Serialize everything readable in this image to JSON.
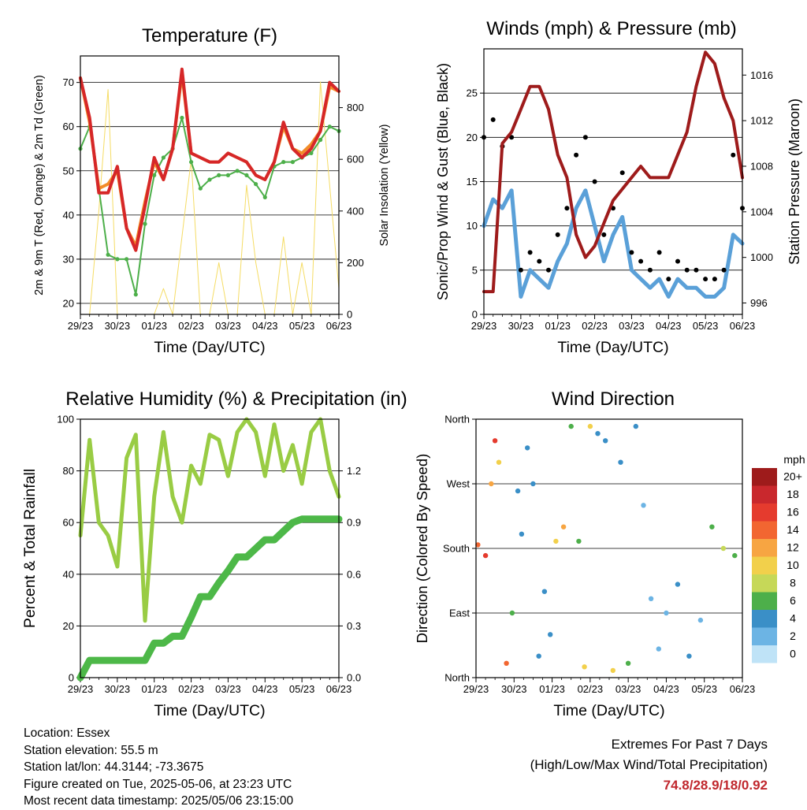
{
  "x_ticks": [
    "29/23",
    "30/23",
    "01/23",
    "02/23",
    "03/23",
    "04/23",
    "05/23",
    "06/23"
  ],
  "x_label": "Time (Day/UTC)",
  "info": {
    "location": "Location: Essex",
    "elevation": "Station elevation: 55.5 m",
    "latlon": "Station lat/lon: 44.3144; -73.3675",
    "created": "Figure created on Tue, 2025-05-06, at 23:23 UTC",
    "recent": "Most recent data timestamp: 2025/05/06 23:15:00"
  },
  "extremes": {
    "title": "Extremes For Past 7 Days",
    "subtitle": "(High/Low/Max Wind/Total Precipitation)",
    "values": "74.8/28.9/18/0.92"
  },
  "colors": {
    "temp_2m": "#d62728",
    "temp_9m": "#f28c28",
    "dewpoint": "#4daf4a",
    "solar": "#f5dc64",
    "wind": "#5aa0d8",
    "gust": "#000000",
    "pressure": "#9e1b1b",
    "rh": "#99cc44",
    "precip": "#4db848"
  },
  "chart_data": [
    {
      "type": "line",
      "title": "Temperature (F)",
      "xlabel": "Time (Day/UTC)",
      "ylabel": "2m & 9m T (Red, Orange) & 2m Td (Green)",
      "ylabel_right": "Solar Insolation (Yellow)",
      "ylim": [
        17.5,
        76
      ],
      "y_ticks": [
        20,
        30,
        40,
        50,
        60,
        70
      ],
      "ylim_right": [
        0,
        1000
      ],
      "y_ticks_right": [
        0,
        200,
        400,
        600,
        800
      ],
      "x_days": [
        0,
        0.25,
        0.5,
        0.75,
        1,
        1.25,
        1.5,
        1.75,
        2,
        2.25,
        2.5,
        2.75,
        3,
        3.25,
        3.5,
        3.75,
        4,
        4.25,
        4.5,
        4.75,
        5,
        5.25,
        5.5,
        5.75,
        6,
        6.25,
        6.5,
        6.75,
        7
      ],
      "series": [
        {
          "name": "2m T",
          "values": [
            71,
            62,
            45,
            45,
            51,
            37,
            32,
            42,
            53,
            48,
            55,
            73,
            54,
            53,
            52,
            52,
            54,
            53,
            52,
            49,
            48,
            52,
            61,
            55,
            53,
            55,
            59,
            70,
            68
          ]
        },
        {
          "name": "9m T",
          "values": [
            71,
            61,
            46,
            47,
            50,
            37,
            33,
            43,
            52,
            48,
            55,
            72,
            54,
            53,
            52,
            52,
            54,
            53,
            52,
            49,
            48,
            52,
            60,
            55,
            54,
            56,
            59,
            69,
            68
          ]
        },
        {
          "name": "2m Td",
          "values": [
            55,
            60,
            46,
            31,
            30,
            30,
            22,
            38,
            49,
            53,
            55,
            62,
            52,
            46,
            48,
            49,
            49,
            50,
            49,
            47,
            44,
            51,
            52,
            52,
            53,
            54,
            57,
            60,
            59
          ]
        },
        {
          "name": "Solar",
          "values": [
            0,
            0,
            400,
            870,
            0,
            0,
            0,
            0,
            0,
            100,
            0,
            300,
            600,
            0,
            0,
            200,
            0,
            0,
            500,
            200,
            0,
            0,
            300,
            0,
            200,
            0,
            900,
            500,
            100
          ]
        }
      ]
    },
    {
      "type": "scatter",
      "title": "Winds (mph) & Pressure (mb)",
      "xlabel": "Time (Day/UTC)",
      "ylabel": "Sonic/Prop Wind & Gust (Blue, Black)",
      "ylabel_right": "Station Pressure (Maroon)",
      "ylim": [
        0,
        30
      ],
      "y_ticks": [
        0,
        5,
        10,
        15,
        20,
        25
      ],
      "ylim_right": [
        995,
        1018.3
      ],
      "y_ticks_right": [
        996,
        1000,
        1004,
        1008,
        1012,
        1016
      ],
      "x_days": [
        0,
        0.25,
        0.5,
        0.75,
        1,
        1.25,
        1.5,
        1.75,
        2,
        2.25,
        2.5,
        2.75,
        3,
        3.25,
        3.5,
        3.75,
        4,
        4.25,
        4.5,
        4.75,
        5,
        5.25,
        5.5,
        5.75,
        6,
        6.25,
        6.5,
        6.75,
        7
      ],
      "series": [
        {
          "name": "Wind",
          "values": [
            10,
            13,
            12,
            14,
            2,
            5,
            4,
            3,
            6,
            8,
            12,
            14,
            10,
            6,
            9,
            11,
            5,
            4,
            3,
            4,
            2,
            4,
            3,
            3,
            2,
            2,
            3,
            9,
            8
          ]
        },
        {
          "name": "Gust",
          "values": [
            20,
            22,
            19,
            20,
            5,
            7,
            6,
            5,
            9,
            12,
            18,
            20,
            15,
            9,
            12,
            16,
            7,
            6,
            5,
            7,
            4,
            6,
            5,
            5,
            4,
            4,
            5,
            18,
            12
          ]
        },
        {
          "name": "Pressure",
          "values": [
            997,
            997,
            1010,
            1011,
            1013,
            1015,
            1015,
            1013,
            1009,
            1007,
            1002,
            1000,
            1001,
            1003,
            1005,
            1006,
            1007,
            1008,
            1007,
            1007,
            1007,
            1009,
            1011,
            1015,
            1018,
            1017,
            1014,
            1012,
            1007
          ]
        }
      ]
    },
    {
      "type": "line",
      "title": "Relative Humidity (%) & Precipitation (in)",
      "xlabel": "Time (Day/UTC)",
      "ylabel": "Percent & Total Rainfall",
      "ylim": [
        0,
        100
      ],
      "y_ticks": [
        0,
        20,
        40,
        60,
        80,
        100
      ],
      "ylim_right": [
        0,
        1.5
      ],
      "y_ticks_right": [
        0.0,
        0.3,
        0.6,
        0.9,
        1.2
      ],
      "x_days": [
        0,
        0.25,
        0.5,
        0.75,
        1,
        1.25,
        1.5,
        1.75,
        2,
        2.25,
        2.5,
        2.75,
        3,
        3.25,
        3.5,
        3.75,
        4,
        4.25,
        4.5,
        4.75,
        5,
        5.25,
        5.5,
        5.75,
        6,
        6.25,
        6.5,
        6.75,
        7
      ],
      "series": [
        {
          "name": "RH",
          "values": [
            55,
            92,
            60,
            55,
            43,
            85,
            94,
            22,
            70,
            95,
            70,
            60,
            82,
            75,
            94,
            92,
            78,
            95,
            100,
            95,
            78,
            98,
            80,
            90,
            75,
            95,
            100,
            80,
            70
          ]
        },
        {
          "name": "Precip",
          "values": [
            0,
            0.1,
            0.1,
            0.1,
            0.1,
            0.1,
            0.1,
            0.1,
            0.2,
            0.2,
            0.24,
            0.24,
            0.35,
            0.47,
            0.47,
            0.55,
            0.62,
            0.7,
            0.7,
            0.75,
            0.8,
            0.8,
            0.85,
            0.9,
            0.92,
            0.92,
            0.92,
            0.92,
            0.92
          ]
        }
      ]
    },
    {
      "type": "scatter",
      "title": "Wind Direction",
      "xlabel": "Time (Day/UTC)",
      "ylabel": "Direction (Colored By Speed)",
      "y_ticks": [
        "North",
        "East",
        "South",
        "West",
        "North"
      ],
      "ylim": [
        0,
        360
      ],
      "legend_title": "mph",
      "legend_labels": [
        "20+",
        "18",
        "16",
        "14",
        "12",
        "10",
        "8",
        "6",
        "4",
        "2",
        "0"
      ],
      "legend_colors": [
        "#9e1b1b",
        "#c9282d",
        "#e53b2e",
        "#f26631",
        "#f7a542",
        "#f2d04b",
        "#c6d858",
        "#4daf4a",
        "#3a8fc7",
        "#6cb4e4",
        "#bfe3f7"
      ],
      "x_days": [
        0.05,
        0.25,
        0.4,
        0.5,
        0.6,
        0.8,
        0.95,
        1.1,
        1.2,
        1.35,
        1.5,
        1.65,
        1.8,
        1.95,
        2.1,
        2.3,
        2.5,
        2.7,
        2.85,
        3.0,
        3.2,
        3.4,
        3.6,
        3.8,
        4.0,
        4.2,
        4.4,
        4.6,
        4.8,
        5.0,
        5.3,
        5.6,
        5.9,
        6.2,
        6.5,
        6.8
      ],
      "directions": [
        185,
        170,
        270,
        330,
        300,
        20,
        90,
        260,
        200,
        320,
        270,
        30,
        120,
        60,
        190,
        210,
        350,
        190,
        15,
        350,
        340,
        330,
        10,
        300,
        20,
        350,
        240,
        110,
        40,
        90,
        130,
        30,
        80,
        210,
        180,
        170
      ],
      "speeds": [
        14,
        16,
        12,
        15,
        10,
        14,
        6,
        4,
        4,
        3,
        4,
        3,
        4,
        4,
        10,
        12,
        6,
        6,
        10,
        10,
        4,
        4,
        10,
        4,
        6,
        3,
        2,
        2,
        2,
        2,
        3,
        4,
        2,
        6,
        8,
        6
      ]
    }
  ]
}
